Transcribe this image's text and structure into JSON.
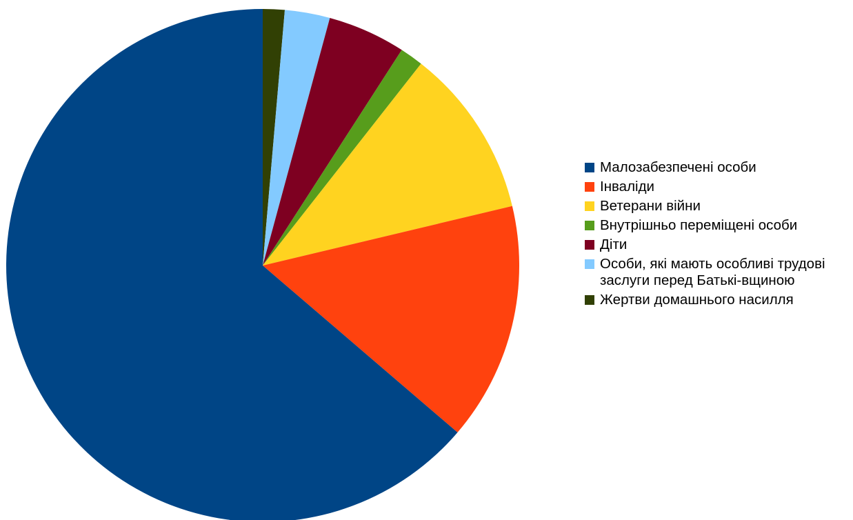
{
  "chart_data": {
    "type": "pie",
    "title": "",
    "categories": [
      "Малозабезпечені особи",
      "Інваліди",
      "Ветерани війни",
      "Внутрішньо переміщені особи",
      "Діти",
      "Особи, які мають особливі трудові заслуги перед Батьківщиною",
      "Жертви домашнього насилля"
    ],
    "legend_labels": [
      "Малозабезпечені особи",
      "Інваліди",
      "Ветерани війни",
      "Внутрішньо переміщені особи",
      "Діти",
      "Особи, які мають особливі трудові заслуги перед Батькі-вщиною",
      "Жертви домашнього насилля"
    ],
    "values": [
      65.0,
      15.3,
      10.9,
      1.5,
      5.0,
      2.9,
      1.4
    ],
    "colors": [
      "#004586",
      "#ff420e",
      "#ffd320",
      "#579d1c",
      "#7e0021",
      "#83caff",
      "#314004"
    ],
    "slice_order": [
      6,
      5,
      4,
      3,
      2,
      1,
      0
    ],
    "legend_position": "right"
  }
}
